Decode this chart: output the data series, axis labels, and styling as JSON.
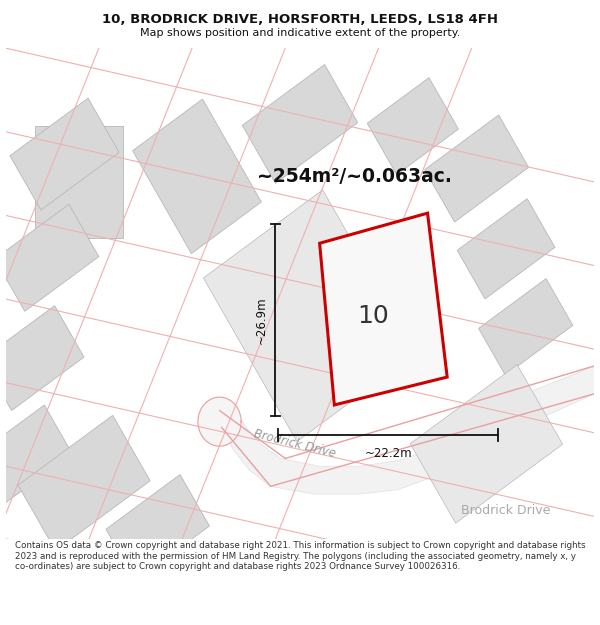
{
  "title": "10, BRODRICK DRIVE, HORSFORTH, LEEDS, LS18 4FH",
  "subtitle": "Map shows position and indicative extent of the property.",
  "area_text": "~254m²/~0.063ac.",
  "property_number": "10",
  "dim_horizontal": "~22.2m",
  "dim_vertical": "~26.9m",
  "street_label_diag": "Brodrick Drive",
  "street_label_flat": "Brodrick Drive",
  "footer": "Contains OS data © Crown copyright and database right 2021. This information is subject to Crown copyright and database rights 2023 and is reproduced with the permission of HM Land Registry. The polygons (including the associated geometry, namely x, y co-ordinates) are subject to Crown copyright and database rights 2023 Ordnance Survey 100026316.",
  "map_bg": "#ffffff",
  "bldg_fill": "#d8d8d8",
  "bldg_edge": "#b8b8b8",
  "bldg_fill2": "#e8e8e8",
  "plot_fill": "#f0f0f0",
  "plot_edge": "#cc0000",
  "pink": "#f0b0b0",
  "pink2": "#e8a0a0",
  "road_fill": "#eeeeee",
  "road_label_color": "#aaaaaa",
  "street_label_color": "#999999",
  "dim_color": "#111111",
  "text_dark": "#222222"
}
